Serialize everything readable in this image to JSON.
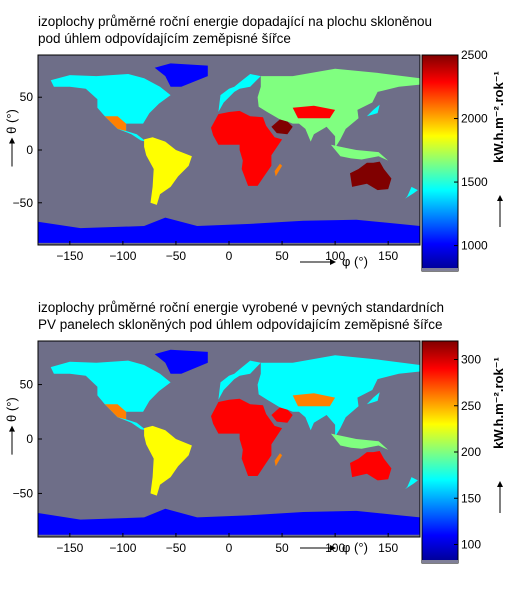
{
  "charts": [
    {
      "title_line1": "izoplochy průměrné roční energie dopadající na plochu skloněnou",
      "title_line2": "pod úhlem odpovídajícím zeměpisné šířce"
    },
    {
      "title_line1": "izoplochy průměrné roční energie vyrobené v pevných standardních",
      "title_line2": "PV panelech skloněných pod úhlem odpovídajícím zeměpisné šířce"
    }
  ],
  "colors": {
    "ocean": "#6e6e88",
    "colormap": [
      "#00008f",
      "#0000ff",
      "#0080ff",
      "#00ffff",
      "#80ff80",
      "#ffff00",
      "#ff8000",
      "#ff0000",
      "#800000"
    ]
  },
  "chart_data": [
    {
      "type": "heatmap",
      "xlabel": "φ (°)",
      "ylabel": "θ (°)",
      "xlim": [
        -180,
        180
      ],
      "ylim": [
        -90,
        90
      ],
      "x_ticks": [
        -150,
        -100,
        -50,
        0,
        50,
        100,
        150
      ],
      "y_ticks": [
        50,
        0,
        -50
      ],
      "colorbar_label": "kW.h.m⁻².rok⁻¹",
      "colorbar_range": [
        800,
        2500
      ],
      "colorbar_ticks": [
        1000,
        1500,
        2000,
        2500
      ]
    },
    {
      "type": "heatmap",
      "xlabel": "φ (°)",
      "ylabel": "θ (°)",
      "xlim": [
        -180,
        180
      ],
      "ylim": [
        -90,
        90
      ],
      "x_ticks": [
        -150,
        -100,
        -50,
        0,
        50,
        100,
        150
      ],
      "y_ticks": [
        50,
        0,
        -50
      ],
      "colorbar_label": "kW.h.m⁻².rok⁻¹",
      "colorbar_range": [
        80,
        320
      ],
      "colorbar_ticks": [
        100,
        150,
        200,
        250,
        300
      ]
    }
  ]
}
